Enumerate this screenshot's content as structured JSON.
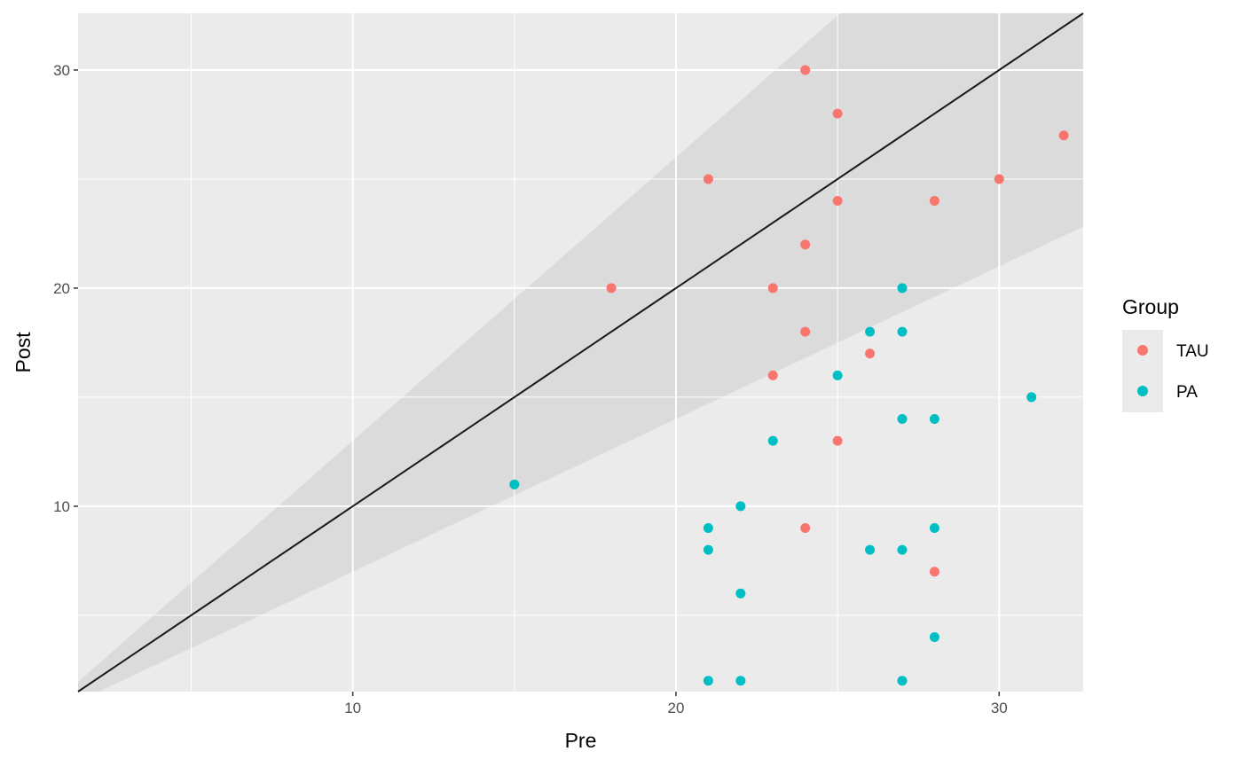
{
  "chart_data": {
    "type": "scatter",
    "xlabel": "Pre",
    "ylabel": "Post",
    "xlim": [
      1.5,
      32.6
    ],
    "ylim": [
      1.5,
      32.6
    ],
    "x_ticks": [
      10,
      20,
      30
    ],
    "y_ticks": [
      10,
      20,
      30
    ],
    "x_minor_ticks": [
      5,
      15,
      25
    ],
    "y_minor_ticks": [
      5,
      15,
      25
    ],
    "grid": true,
    "panel_background": "#ebebeb",
    "legend": {
      "title": "Group",
      "position": "right",
      "entries": [
        "TAU",
        "PA"
      ]
    },
    "reference_line": {
      "type": "identity",
      "label": "y = x",
      "color": "#1a1a1a"
    },
    "ribbon": {
      "color": "#cccccc",
      "opacity": 0.5,
      "lower_slope": 0.7,
      "upper_slope": 1.3
    },
    "series": [
      {
        "name": "TAU",
        "color": "#f8766d",
        "points": [
          [
            24,
            30
          ],
          [
            25,
            28
          ],
          [
            32,
            27
          ],
          [
            21,
            25
          ],
          [
            30,
            25
          ],
          [
            25,
            24
          ],
          [
            28,
            24
          ],
          [
            24,
            22
          ],
          [
            18,
            20
          ],
          [
            23,
            20
          ],
          [
            24,
            18
          ],
          [
            26,
            17
          ],
          [
            23,
            16
          ],
          [
            25,
            13
          ],
          [
            24,
            9
          ],
          [
            28,
            7
          ]
        ]
      },
      {
        "name": "PA",
        "color": "#00bfc4",
        "points": [
          [
            27,
            20
          ],
          [
            26,
            18
          ],
          [
            27,
            18
          ],
          [
            25,
            16
          ],
          [
            31,
            15
          ],
          [
            27,
            14
          ],
          [
            28,
            14
          ],
          [
            23,
            13
          ],
          [
            15,
            11
          ],
          [
            22,
            10
          ],
          [
            21,
            9
          ],
          [
            28,
            9
          ],
          [
            21,
            8
          ],
          [
            26,
            8
          ],
          [
            27,
            8
          ],
          [
            22,
            6
          ],
          [
            28,
            4
          ],
          [
            21,
            2
          ],
          [
            22,
            2
          ],
          [
            27,
            2
          ]
        ]
      }
    ]
  }
}
